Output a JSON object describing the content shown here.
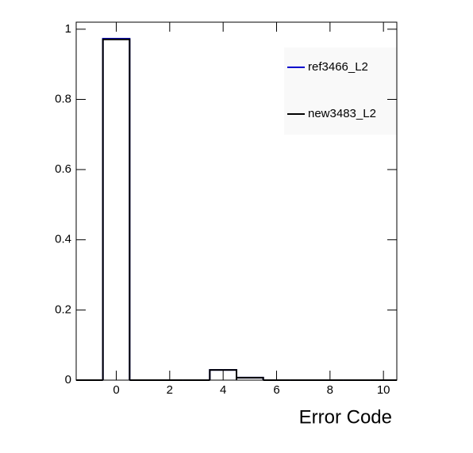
{
  "chart_data": {
    "type": "histogram",
    "x_label": "Error Code",
    "bins": [
      -1.5,
      -0.5,
      0.5,
      1.5,
      2.5,
      3.5,
      4.5,
      5.5,
      6.5,
      7.5,
      8.5,
      9.5,
      10.5
    ],
    "series": [
      {
        "name": "ref3466_L2",
        "color": "#0000cc",
        "values": [
          0,
          0.973,
          0,
          0,
          0,
          0.029,
          0.007,
          0,
          0,
          0,
          0,
          0
        ]
      },
      {
        "name": "new3483_L2",
        "color": "#000000",
        "values": [
          0,
          0.971,
          0,
          0,
          0,
          0.029,
          0.007,
          0,
          0,
          0,
          0,
          0
        ]
      }
    ],
    "xlim": [
      -1.5,
      10.5
    ],
    "ylim": [
      0,
      1.02
    ],
    "xticks": [
      0,
      2,
      4,
      6,
      8,
      10
    ],
    "yticks": [
      0,
      0.2,
      0.4,
      0.6,
      0.8,
      1
    ],
    "legend": "top-right"
  }
}
